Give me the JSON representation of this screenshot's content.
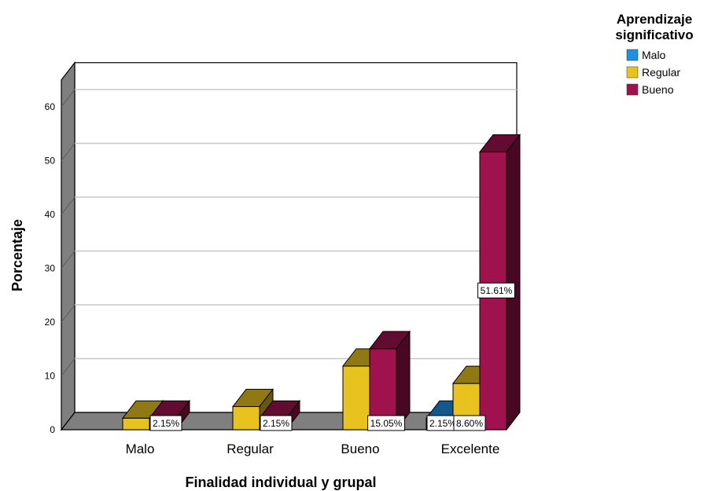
{
  "chart_data": {
    "type": "bar",
    "title": "",
    "xlabel": "Finalidad individual y grupal",
    "ylabel": "Porcentaje",
    "categories": [
      "Malo",
      "Regular",
      "Bueno",
      "Excelente"
    ],
    "ylim": [
      0,
      65
    ],
    "yticks": [
      0,
      10,
      20,
      30,
      40,
      50,
      60
    ],
    "grid": true,
    "three_d": true,
    "legend": {
      "title_lines": [
        "Aprendizaje",
        "significativo"
      ],
      "placement": "top-right"
    },
    "series": [
      {
        "name": "Malo",
        "color": "#1e90e6",
        "values": [
          0,
          0,
          0,
          2.15
        ],
        "labels": [
          "",
          "",
          "",
          "2.15%"
        ]
      },
      {
        "name": "Regular",
        "color": "#e8c21e",
        "values": [
          2.15,
          4.3,
          11.83,
          8.6
        ],
        "labels": [
          "",
          "",
          "",
          "8.60%"
        ]
      },
      {
        "name": "Bueno",
        "color": "#a0124e",
        "values": [
          2.15,
          2.15,
          15.05,
          51.61
        ],
        "labels": [
          "2.15%",
          "2.15%",
          "15.05%",
          "51.61%"
        ]
      }
    ]
  }
}
